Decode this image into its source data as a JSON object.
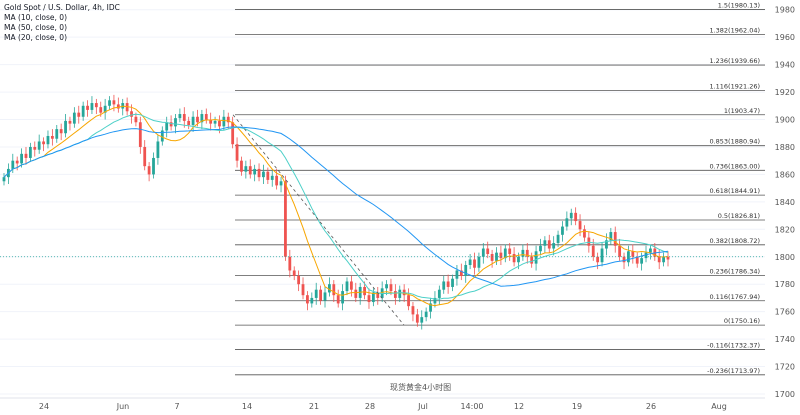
{
  "legend": {
    "symbol": "Gold Spot / U.S. Dollar, 4h, IDC",
    "ma_lines": [
      "MA (10, close, 0)",
      "MA (50, close, 0)",
      "MA (20, close, 0)"
    ]
  },
  "caption": "现货黄金4小时图",
  "colors": {
    "up": "#26a69a",
    "down": "#ef5350",
    "ma10": "#f7a600",
    "ma50": "#2196f3",
    "ma20": "#4dd0c8",
    "fib": "#555555",
    "trend": "#555555",
    "current": "#26a69a",
    "grid": "#f0f3fa",
    "axis_text": "#555555"
  },
  "chart_data": {
    "type": "candlestick",
    "y_range": [
      1700,
      1990
    ],
    "y_ticks": [
      1700,
      1720,
      1740,
      1760,
      1780,
      1800,
      1820,
      1840,
      1860,
      1880,
      1900,
      1920,
      1940,
      1960,
      1980
    ],
    "x_ticks": [
      "24",
      "Jun",
      "7",
      "14",
      "21",
      "28",
      "Jul",
      "14:00",
      "12",
      "19",
      "26",
      "Aug"
    ],
    "current_price": 1800,
    "fib_levels": [
      {
        "ratio": "1.5",
        "value": 1980.13
      },
      {
        "ratio": "1.382",
        "value": 1962.04
      },
      {
        "ratio": "1.236",
        "value": 1939.66
      },
      {
        "ratio": "1.116",
        "value": 1921.26
      },
      {
        "ratio": "1",
        "value": 1903.47
      },
      {
        "ratio": "0.853",
        "value": 1880.94
      },
      {
        "ratio": "0.736",
        "value": 1863.0
      },
      {
        "ratio": "0.618",
        "value": 1844.91
      },
      {
        "ratio": "0.5",
        "value": 1826.81
      },
      {
        "ratio": "0.382",
        "value": 1808.72
      },
      {
        "ratio": "0.236",
        "value": 1786.34
      },
      {
        "ratio": "0.116",
        "value": 1767.94
      },
      {
        "ratio": "0",
        "value": 1750.16
      },
      {
        "ratio": "-0.116",
        "value": 1732.37
      },
      {
        "ratio": "-0.236",
        "value": 1713.97
      }
    ],
    "closes": [
      1858,
      1864,
      1870,
      1868,
      1875,
      1872,
      1880,
      1878,
      1884,
      1882,
      1888,
      1886,
      1893,
      1890,
      1899,
      1897,
      1905,
      1902,
      1910,
      1907,
      1912,
      1909,
      1905,
      1910,
      1914,
      1911,
      1908,
      1912,
      1906,
      1902,
      1898,
      1880,
      1866,
      1860,
      1872,
      1884,
      1892,
      1898,
      1895,
      1901,
      1904,
      1899,
      1896,
      1902,
      1898,
      1904,
      1900,
      1897,
      1899,
      1895,
      1902,
      1898,
      1882,
      1870,
      1862,
      1866,
      1860,
      1864,
      1858,
      1862,
      1856,
      1859,
      1852,
      1855,
      1800,
      1790,
      1786,
      1780,
      1772,
      1766,
      1770,
      1776,
      1768,
      1774,
      1780,
      1772,
      1766,
      1775,
      1782,
      1776,
      1770,
      1778,
      1772,
      1767,
      1774,
      1770,
      1777,
      1780,
      1775,
      1770,
      1776,
      1772,
      1764,
      1758,
      1752,
      1756,
      1760,
      1766,
      1770,
      1776,
      1782,
      1778,
      1784,
      1790,
      1786,
      1794,
      1798,
      1792,
      1800,
      1806,
      1802,
      1797,
      1803,
      1799,
      1806,
      1802,
      1796,
      1800,
      1805,
      1800,
      1795,
      1804,
      1808,
      1812,
      1806,
      1810,
      1816,
      1822,
      1828,
      1832,
      1826,
      1820,
      1814,
      1808,
      1800,
      1796,
      1806,
      1812,
      1818,
      1808,
      1800,
      1796,
      1804,
      1800,
      1795,
      1799,
      1803,
      1806,
      1800,
      1796,
      1800,
      1798
    ],
    "trend_line": [
      [
        1903.47,
        1750.16
      ]
    ]
  }
}
